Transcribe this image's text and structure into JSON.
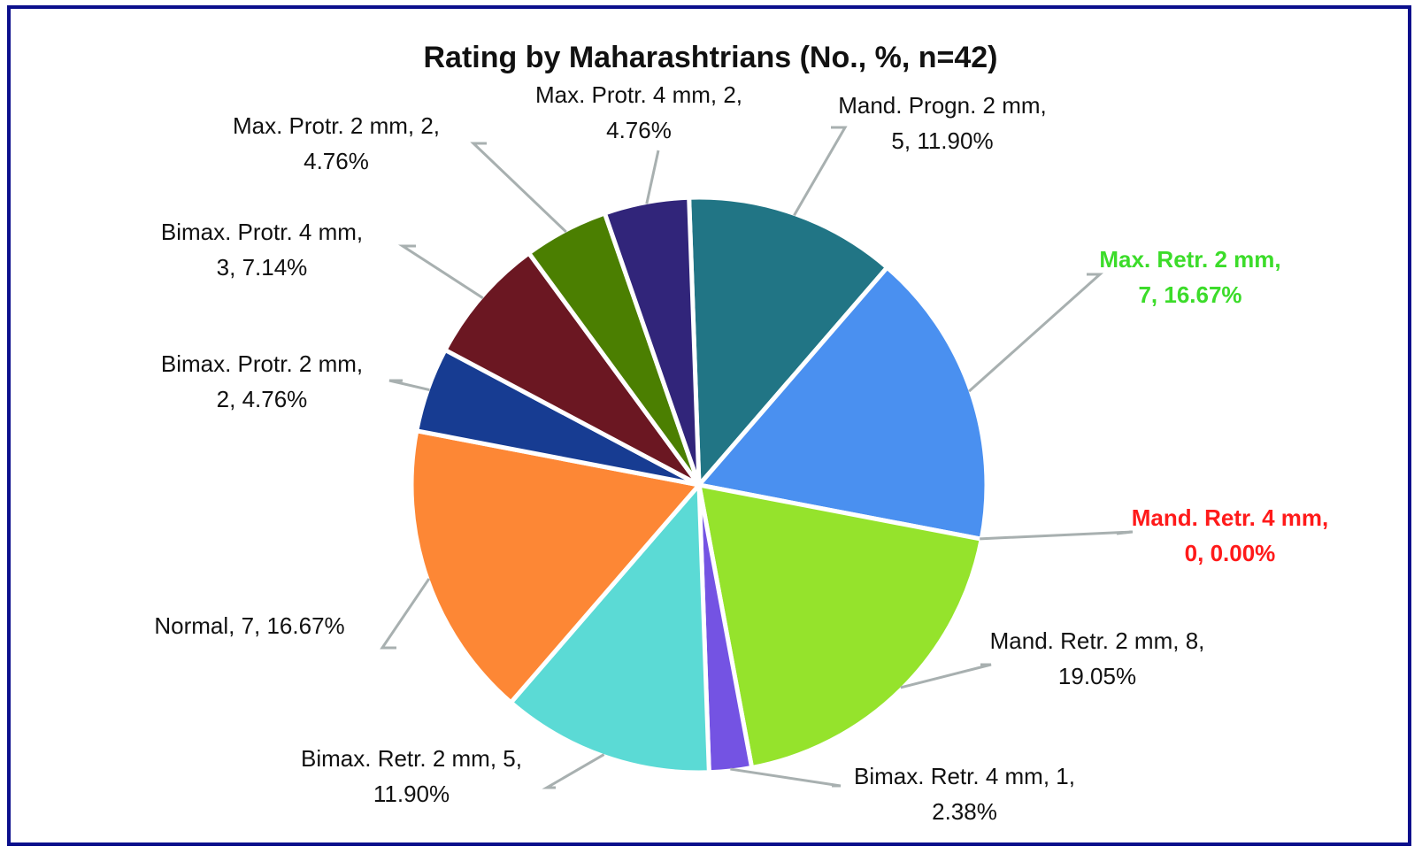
{
  "chart_data": {
    "type": "pie",
    "title": "Rating by Maharashtrians (No., %, n=42)",
    "n": 42,
    "start_angle_deg": -2,
    "direction": "clockwise",
    "slices": [
      {
        "label": "Mand. Progn. 2 mm",
        "value": 5,
        "percent": "11.90%",
        "color": "#217585",
        "label_lines": [
          "Mand. Progn. 2 mm,",
          "5, 11.90%"
        ],
        "label_color": "#111111",
        "label_bold": false
      },
      {
        "label": "Max. Retr. 2 mm",
        "value": 7,
        "percent": "16.67%",
        "color": "#4a90f0",
        "label_lines": [
          "Max. Retr. 2 mm,",
          "7, 16.67%"
        ],
        "label_color": "#3cdc2a",
        "label_bold": true
      },
      {
        "label": "Mand. Retr. 4 mm",
        "value": 0,
        "percent": "0.00%",
        "color": "#c00000",
        "label_lines": [
          "Mand. Retr. 4 mm,",
          "0, 0.00%"
        ],
        "label_color": "#ff1a1a",
        "label_bold": true
      },
      {
        "label": "Mand. Retr. 2 mm",
        "value": 8,
        "percent": "19.05%",
        "color": "#95e32c",
        "label_lines": [
          "Mand. Retr. 2 mm, 8,",
          "19.05%"
        ],
        "label_color": "#111111",
        "label_bold": false
      },
      {
        "label": "Bimax. Retr. 4 mm",
        "value": 1,
        "percent": "2.38%",
        "color": "#7453e3",
        "label_lines": [
          "Bimax. Retr. 4 mm, 1,",
          "2.38%"
        ],
        "label_color": "#111111",
        "label_bold": false
      },
      {
        "label": "Bimax. Retr. 2 mm",
        "value": 5,
        "percent": "11.90%",
        "color": "#5bdad5",
        "label_lines": [
          "Bimax. Retr. 2 mm, 5,",
          "11.90%"
        ],
        "label_color": "#111111",
        "label_bold": false
      },
      {
        "label": "Normal",
        "value": 7,
        "percent": "16.67%",
        "color": "#fd8735",
        "label_lines": [
          "Normal, 7, 16.67%"
        ],
        "label_color": "#111111",
        "label_bold": false
      },
      {
        "label": "Bimax. Protr. 2 mm",
        "value": 2,
        "percent": "4.76%",
        "color": "#173c92",
        "label_lines": [
          "Bimax. Protr. 2 mm,",
          "2, 4.76%"
        ],
        "label_color": "#111111",
        "label_bold": false
      },
      {
        "label": "Bimax. Protr. 4 mm",
        "value": 3,
        "percent": "7.14%",
        "color": "#6b1722",
        "label_lines": [
          "Bimax. Protr. 4 mm,",
          "3, 7.14%"
        ],
        "label_color": "#111111",
        "label_bold": false
      },
      {
        "label": "Max. Protr. 2 mm",
        "value": 2,
        "percent": "4.76%",
        "color": "#4b7f01",
        "label_lines": [
          "Max. Protr. 2 mm, 2,",
          "4.76%"
        ],
        "label_color": "#111111",
        "label_bold": false
      },
      {
        "label": "Max. Protr. 4 mm",
        "value": 2,
        "percent": "4.76%",
        "color": "#31257a",
        "label_lines": [
          "Max. Protr. 4 mm, 2,",
          "4.76%"
        ],
        "label_color": "#111111",
        "label_bold": false
      }
    ],
    "leader_line_color": "#a8b0b0",
    "border_color": "#0b0f8c"
  }
}
